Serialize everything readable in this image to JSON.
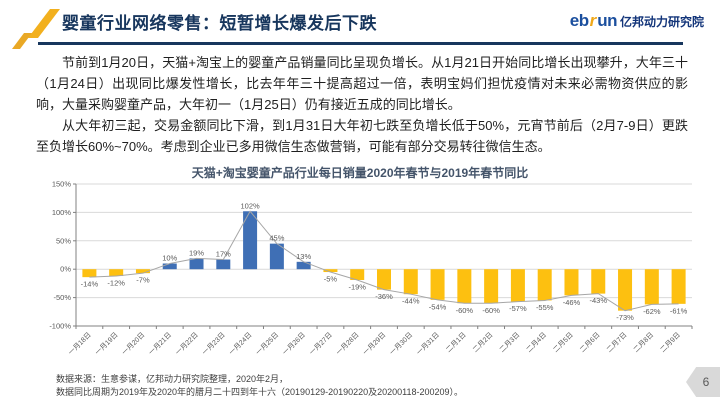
{
  "header": {
    "title": "婴童行业网络零售：短暂增长爆发后下跌",
    "brand": {
      "eb": "eb",
      "r": "r",
      "un": "un",
      "suffix": "亿邦动力研究院"
    }
  },
  "body": {
    "paragraph1": "节前到1月20日，天猫+淘宝上的婴童产品销量同比呈现负增长。从1月21日开始同比增长出现攀升，大年三十（1月24日）出现同比爆发性增长，比去年年三十提高超过一倍，表明宝妈们担忧疫情对未来必需物资供应的影响，大量采购婴童产品，大年初一（1月25日）仍有接近五成的同比增长。",
    "paragraph2": "从大年初三起，交易金额同比下滑，到1月31日大年初七跌至负增长低于50%，元宵节前后（2月7-9日）更跌至负增长60%~70%。考虑到企业已多用微信生态做营销，可能有部分交易转往微信生态。"
  },
  "chart_data": {
    "type": "bar",
    "title": "天猫+淘宝婴童产品行业每日销量2020年春节与2019年春节同比",
    "categories": [
      "一月18日",
      "一月19日",
      "一月20日",
      "一月21日",
      "一月22日",
      "一月23日",
      "一月24日",
      "一月25日",
      "一月26日",
      "一月27日",
      "一月28日",
      "一月29日",
      "一月30日",
      "一月31日",
      "二月1日",
      "二月2日",
      "二月3日",
      "二月4日",
      "二月5日",
      "二月6日",
      "二月7日",
      "二月8日",
      "二月9日"
    ],
    "values": [
      -14,
      -12,
      -7,
      10,
      19,
      17,
      102,
      45,
      13,
      -5,
      -19,
      -36,
      -44,
      -54,
      -60,
      -60,
      -57,
      -55,
      -46,
      -43,
      -73,
      -62,
      -61
    ],
    "unit": "%",
    "ylim": [
      -100,
      150
    ],
    "yticks": [
      150,
      100,
      50,
      0,
      -50,
      -100
    ],
    "grid": true,
    "legend": "none",
    "colors": {
      "positive_bar": "#3F6FB5",
      "negative_bar": "#FDC010",
      "trend_line": "#A6A6A6",
      "gridline": "#D9D9D9",
      "axis": "#808080",
      "label_text": "#595959"
    }
  },
  "footnote": {
    "line1": "数据来源：生意参谋，亿邦动力研究院整理，2020年2月，",
    "line2": "数据同比周期为2019年及2020年的腊月二十四到年十六（20190129-20190220及20200118-200209）。"
  },
  "page_number": "6",
  "theme": {
    "accent_navy": "#17365D",
    "accent_gold": "#F2B01E"
  }
}
